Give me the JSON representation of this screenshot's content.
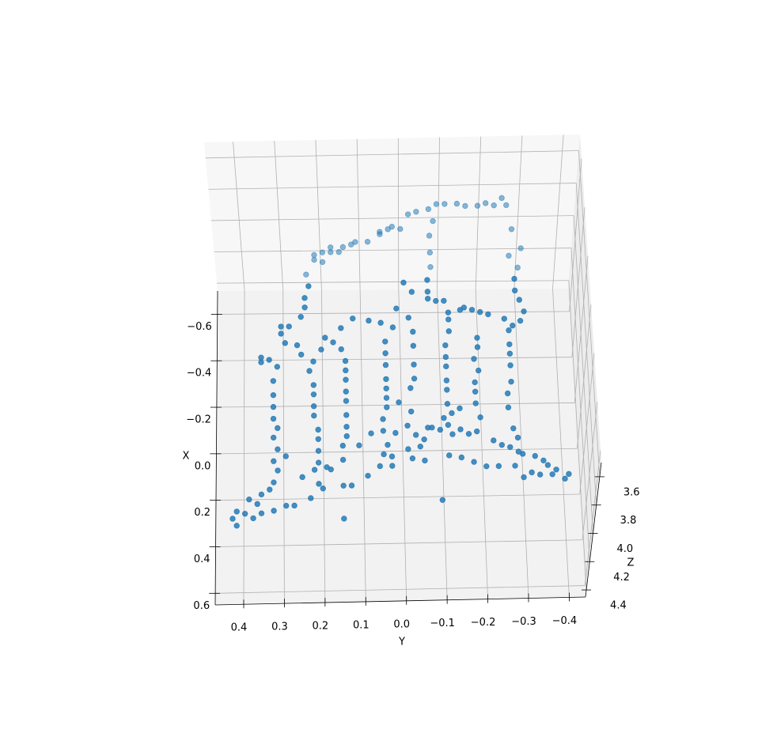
{
  "chart_data": {
    "type": "scatter3d",
    "xlabel": "X",
    "ylabel": "Y",
    "zlabel": "Z",
    "xlim": [
      -0.7,
      0.65
    ],
    "ylim": [
      -0.44,
      0.47
    ],
    "zlim": [
      3.5,
      4.45
    ],
    "xticks": [
      {
        "value": -0.6,
        "label": "−0.6"
      },
      {
        "value": -0.4,
        "label": "−0.4"
      },
      {
        "value": -0.2,
        "label": "−0.2"
      },
      {
        "value": 0,
        "label": "0.0"
      },
      0.2,
      0.4,
      0.6
    ],
    "yticks": [
      0.4,
      0.3,
      0.2,
      0.1,
      {
        "value": 0,
        "label": "0.0"
      },
      {
        "value": -0.1,
        "label": "−0.1"
      },
      {
        "value": -0.2,
        "label": "−0.2"
      },
      {
        "value": -0.3,
        "label": "−0.3"
      },
      {
        "value": -0.4,
        "label": "−0.4"
      }
    ],
    "zticks": [
      3.6,
      3.8,
      {
        "value": 4,
        "label": "4.0"
      },
      4.2,
      4.4
    ],
    "grid": true,
    "series": [
      {
        "color": "#1f77b4",
        "x": [
          -0.55,
          -0.55,
          -0.55,
          -0.54,
          -0.54,
          -0.55,
          -0.54,
          -0.57,
          -0.54,
          -0.53,
          -0.52,
          -0.51,
          -0.48,
          -0.45,
          -0.46,
          -0.45,
          -0.44,
          -0.43,
          -0.4,
          -0.4,
          -0.39,
          -0.38,
          -0.38,
          -0.36,
          -0.35,
          -0.33,
          -0.32,
          -0.36,
          -0.35,
          -0.44,
          -0.36,
          -0.33,
          -0.28,
          -0.27,
          -0.42,
          -0.29,
          -0.36
        ],
        "y": [
          -0.09,
          -0.11,
          -0.14,
          -0.16,
          -0.19,
          -0.21,
          -0.23,
          -0.25,
          -0.26,
          -0.07,
          -0.04,
          -0.02,
          -0.08,
          0,
          0.02,
          0.03,
          0.05,
          0.05,
          0.08,
          0.11,
          0.12,
          0.14,
          0.17,
          0.19,
          0.21,
          0.21,
          0.19,
          0.15,
          -0.07,
          -0.27,
          -0.29,
          -0.26,
          -0.28,
          0.23,
          -0.07,
          -0.07,
          0.17
        ],
        "z": [
          3.69,
          3.69,
          3.69,
          3.69,
          3.69,
          3.69,
          3.69,
          3.69,
          3.69,
          3.69,
          3.69,
          3.69,
          3.69,
          3.69,
          3.69,
          3.69,
          3.69,
          3.69,
          3.69,
          3.69,
          3.69,
          3.69,
          3.69,
          3.69,
          3.69,
          3.69,
          3.69,
          3.69,
          3.69,
          3.69,
          3.69,
          3.69,
          3.69,
          3.69,
          3.69,
          3.69,
          3.69
        ]
      },
      {
        "color": "#1f77b4",
        "x": [
          -0.53,
          -0.48,
          -0.44,
          -0.4,
          -0.36,
          -0.36,
          -0.33,
          -0.29,
          -0.28,
          -0.24,
          -0.23,
          -0.22,
          -0.21,
          -0.19,
          -0.13,
          -0.07,
          -0.02,
          0.03,
          0.07,
          0.11,
          0.16,
          0.21,
          0.25,
          0.3,
          0.35,
          0.37,
          0.39,
          0.33,
          0.42,
          0.43,
          0.45,
          0.48,
          0.45,
          0.43,
          0.42,
          0.4,
          0.4,
          0.37,
          0.33,
          0.31,
          0.28,
          0.25,
          0.24,
          0.19,
          0.22,
          0.17,
          0.12,
          0.08,
          0.02,
          -0.02,
          -0.07,
          -0.11,
          -0.17,
          -0.21,
          -0.26,
          -0.31,
          -0.29,
          -0.35,
          -0.26,
          -0.21,
          -0.17,
          -0.13,
          -0.08,
          -0.04,
          0.02,
          0.07,
          0.11,
          0.15,
          0.15,
          0.21,
          0.25,
          0.32,
          0.32,
          0.28,
          0.46,
          -0.39,
          -0.38,
          -0.37,
          -0.35,
          -0.29,
          -0.24,
          -0.19,
          -0.13,
          -0.09,
          -0.05,
          -0.01,
          0.04,
          0.09,
          0.15,
          0.19,
          0.2,
          0.1,
          0.24,
          0.24,
          0.1,
          -0.03,
          -0.54,
          -0.43,
          -0.39,
          -0.33,
          -0.27,
          -0.19,
          -0.13,
          -0.09,
          0.01,
          0.07,
          0.11,
          0.21,
          0.22,
          0.17,
          0.16,
          0.08,
          0.13,
          0.08,
          0.09,
          0.04,
          0.02,
          0,
          0.39,
          -0.47,
          -0.55,
          -0.5,
          -0.5,
          -0.46,
          -0.46,
          -0.41,
          -0.38,
          -0.33,
          -0.27,
          -0.22,
          -0.18,
          -0.12,
          -0.08,
          -0.02,
          0.07,
          0.11,
          0.2,
          0.21,
          0.23,
          0.1,
          0.04,
          -0.02,
          -0.07,
          -0.11,
          -0.16,
          -0.21,
          -0.26,
          -0.3,
          -0.42,
          -0.41,
          -0.4,
          -0.38,
          -0.37,
          -0.41,
          -0.46,
          -0.5,
          -0.55,
          -0.35,
          -0.33,
          -0.27,
          -0.23,
          -0.18,
          -0.11,
          -0.06,
          0,
          0.09,
          0.13,
          0.17,
          0.19,
          0.2,
          0.21,
          0.23,
          0.27,
          0.31,
          0.29,
          0.25,
          0.29,
          0.29,
          0.3,
          0.28,
          0.25,
          0.25,
          0.25,
          -0.42,
          -0.43,
          0.14,
          0.16,
          0.11,
          0.09
        ],
        "y": [
          0.23,
          0.24,
          0.24,
          0.25,
          0.28,
          0.3,
          0.3,
          0.29,
          0.26,
          0.25,
          0.35,
          0.33,
          0.35,
          0.31,
          0.32,
          0.32,
          0.32,
          0.32,
          0.31,
          0.32,
          0.31,
          0.32,
          0.31,
          0.32,
          0.35,
          0.38,
          0.36,
          0.33,
          0.41,
          0.39,
          0.42,
          0.41,
          0.37,
          0.35,
          0.32,
          0.29,
          0.27,
          0.23,
          0.2,
          0.21,
          0.25,
          0.22,
          0.19,
          0.29,
          0.21,
          0.21,
          0.21,
          0.21,
          0.22,
          0.22,
          0.22,
          0.22,
          0.23,
          0.22,
          0.2,
          0.19,
          0.17,
          0.15,
          0.15,
          0.14,
          0.14,
          0.14,
          0.14,
          0.14,
          0.14,
          0.14,
          0.14,
          0.15,
          0.11,
          0.15,
          0.18,
          0.15,
          0.13,
          0.09,
          0.15,
          0.12,
          0.08,
          0.05,
          0.02,
          0.04,
          0.04,
          0.04,
          0.04,
          0.04,
          0.04,
          0.04,
          0.05,
          0.05,
          0.04,
          0.05,
          0.03,
          0.08,
          0.06,
          0.03,
          0.02,
          0.01,
          -0.01,
          0.01,
          -0.02,
          -0.03,
          -0.03,
          -0.03,
          -0.03,
          -0.02,
          -0.02,
          -0.01,
          -0.03,
          -0.02,
          -0.05,
          -0.01,
          -0.04,
          -0.06,
          -0.05,
          -0.07,
          -0.09,
          -0.1,
          -0.12,
          -0.14,
          -0.09,
          -0.07,
          -0.07,
          -0.07,
          -0.03,
          -0.09,
          -0.11,
          -0.12,
          -0.12,
          -0.12,
          -0.11,
          -0.11,
          -0.11,
          -0.11,
          -0.11,
          -0.11,
          -0.11,
          -0.12,
          -0.11,
          -0.14,
          -0.17,
          -0.18,
          -0.19,
          -0.18,
          -0.18,
          -0.18,
          -0.19,
          -0.18,
          -0.19,
          -0.19,
          -0.18,
          -0.2,
          -0.22,
          -0.26,
          -0.3,
          -0.31,
          -0.3,
          -0.29,
          -0.29,
          -0.28,
          -0.27,
          -0.27,
          -0.27,
          -0.27,
          -0.27,
          -0.26,
          -0.26,
          -0.27,
          -0.28,
          -0.26,
          -0.28,
          -0.29,
          -0.32,
          -0.34,
          -0.37,
          -0.39,
          -0.4,
          -0.35,
          -0.36,
          -0.33,
          -0.29,
          -0.31,
          -0.27,
          -0.23,
          -0.2,
          -0.15,
          -0.16,
          -0.22,
          -0.24,
          -0.16,
          -0.14
        ],
        "z": [
          4.17,
          4.17,
          4.17,
          4.17,
          4.17,
          4.17,
          4.17,
          4.17,
          4.17,
          4.17,
          4.17,
          4.17,
          4.17,
          4.17,
          4.17,
          4.17,
          4.17,
          4.17,
          4.17,
          4.17,
          4.17,
          4.17,
          4.17,
          4.17,
          4.17,
          4.17,
          4.17,
          4.17,
          4.17,
          4.17,
          4.17,
          4.17,
          4.17,
          4.17,
          4.17,
          4.17,
          4.17,
          4.17,
          4.17,
          4.17,
          4.17,
          4.17,
          4.17,
          4.17,
          4.17,
          4.17,
          4.17,
          4.17,
          4.17,
          4.17,
          4.17,
          4.17,
          4.17,
          4.17,
          4.17,
          4.17,
          4.17,
          4.17,
          4.17,
          4.17,
          4.17,
          4.17,
          4.17,
          4.17,
          4.17,
          4.17,
          4.17,
          4.17,
          4.17,
          4.17,
          4.17,
          4.17,
          4.17,
          4.17,
          4.17,
          4.17,
          4.17,
          4.17,
          4.17,
          4.17,
          4.17,
          4.17,
          4.17,
          4.17,
          4.17,
          4.17,
          4.17,
          4.17,
          4.17,
          4.17,
          4.17,
          4.17,
          4.17,
          4.17,
          4.17,
          4.17,
          4.17,
          4.17,
          4.17,
          4.17,
          4.17,
          4.17,
          4.17,
          4.17,
          4.17,
          4.17,
          4.17,
          4.17,
          4.17,
          4.17,
          4.17,
          4.17,
          4.17,
          4.17,
          4.17,
          4.17,
          4.17,
          4.17,
          4.17,
          4.17,
          4.17,
          4.17,
          4.17,
          4.17,
          4.17,
          4.17,
          4.17,
          4.17,
          4.17,
          4.17,
          4.17,
          4.17,
          4.17,
          4.17,
          4.17,
          4.17,
          4.17,
          4.17,
          4.17,
          4.17,
          4.17,
          4.17,
          4.17,
          4.17,
          4.17,
          4.17,
          4.17,
          4.17,
          4.17,
          4.17,
          4.17,
          4.17,
          4.17,
          4.17,
          4.17,
          4.17,
          4.17,
          4.17,
          4.17,
          4.17,
          4.17,
          4.17,
          4.17,
          4.17,
          4.17,
          4.17,
          4.17,
          4.17,
          4.17,
          4.17,
          4.17,
          4.17,
          4.17,
          4.17,
          4.17,
          4.17,
          4.17,
          4.17,
          4.17,
          4.17,
          4.17,
          4.17,
          4.17,
          4.17,
          4.17,
          4.17,
          4.17,
          4.17,
          4.17
        ]
      }
    ]
  }
}
